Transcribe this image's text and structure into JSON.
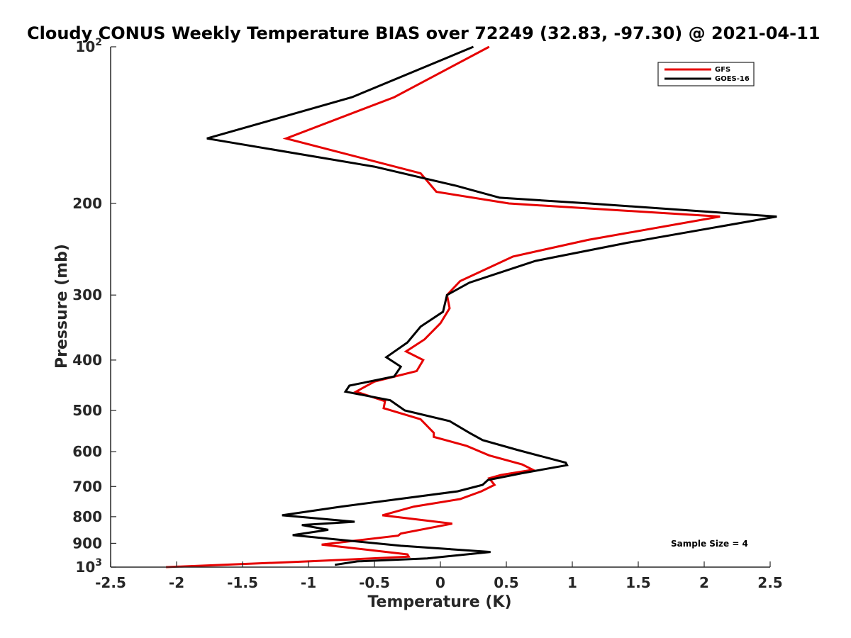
{
  "chart_data": {
    "type": "line",
    "title": "Cloudy CONUS Weekly Temperature BIAS over 72249 (32.83, -97.30) @ 2021-04-11",
    "xlabel": "Temperature (K)",
    "ylabel": "Pressure (mb)",
    "xlim": [
      -2.5,
      2.5
    ],
    "ylim": [
      100,
      1000
    ],
    "y_scale": "log",
    "y_reversed": true,
    "grid": false,
    "x_ticks": [
      "-2.5",
      "-2",
      "-1.5",
      "-1",
      "-0.5",
      "0",
      "0.5",
      "1",
      "1.5",
      "2",
      "2.5"
    ],
    "x_tick_values": [
      -2.5,
      -2,
      -1.5,
      -1,
      -0.5,
      0,
      0.5,
      1,
      1.5,
      2,
      2.5
    ],
    "y_ticks": [
      {
        "value": 100,
        "base": "10",
        "exp": "2"
      },
      {
        "value": 200,
        "label": "200"
      },
      {
        "value": 300,
        "label": "300"
      },
      {
        "value": 400,
        "label": "400"
      },
      {
        "value": 500,
        "label": "500"
      },
      {
        "value": 600,
        "label": "600"
      },
      {
        "value": 700,
        "label": "700"
      },
      {
        "value": 800,
        "label": "800"
      },
      {
        "value": 900,
        "label": "900"
      },
      {
        "value": 1000,
        "base": "10",
        "exp": "3"
      }
    ],
    "legend_position": "top-right",
    "series": [
      {
        "name": "GFS",
        "color": "#e60000",
        "points": [
          [
            0.37,
            100
          ],
          [
            -0.35,
            125
          ],
          [
            -1.17,
            150
          ],
          [
            -0.15,
            175
          ],
          [
            -0.03,
            190
          ],
          [
            0.52,
            200
          ],
          [
            2.12,
            212
          ],
          [
            1.12,
            235
          ],
          [
            0.55,
            253
          ],
          [
            0.15,
            282
          ],
          [
            0.05,
            300
          ],
          [
            0.07,
            318
          ],
          [
            0.0,
            340
          ],
          [
            -0.12,
            365
          ],
          [
            -0.26,
            385
          ],
          [
            -0.13,
            400
          ],
          [
            -0.18,
            420
          ],
          [
            -0.5,
            440
          ],
          [
            -0.64,
            460
          ],
          [
            -0.42,
            480
          ],
          [
            -0.43,
            495
          ],
          [
            -0.15,
            520
          ],
          [
            -0.05,
            552
          ],
          [
            -0.05,
            562
          ],
          [
            0.2,
            585
          ],
          [
            0.37,
            610
          ],
          [
            0.62,
            635
          ],
          [
            0.7,
            650
          ],
          [
            0.46,
            665
          ],
          [
            0.37,
            675
          ],
          [
            0.41,
            695
          ],
          [
            0.31,
            715
          ],
          [
            0.15,
            740
          ],
          [
            -0.2,
            765
          ],
          [
            -0.44,
            795
          ],
          [
            0.09,
            825
          ],
          [
            -0.3,
            862
          ],
          [
            -0.32,
            870
          ],
          [
            -0.9,
            905
          ],
          [
            -0.25,
            945
          ],
          [
            -0.24,
            955
          ],
          [
            -1.0,
            975
          ],
          [
            -2.08,
            1000
          ]
        ]
      },
      {
        "name": "GOES-16",
        "color": "#000000",
        "points": [
          [
            0.25,
            100
          ],
          [
            -0.67,
            125
          ],
          [
            -1.77,
            150
          ],
          [
            -0.5,
            170
          ],
          [
            0.12,
            185
          ],
          [
            0.45,
            195
          ],
          [
            1.13,
            200
          ],
          [
            2.55,
            212
          ],
          [
            1.42,
            238
          ],
          [
            0.72,
            258
          ],
          [
            0.22,
            284
          ],
          [
            0.05,
            300
          ],
          [
            0.02,
            323
          ],
          [
            -0.15,
            345
          ],
          [
            -0.25,
            370
          ],
          [
            -0.41,
            395
          ],
          [
            -0.3,
            412
          ],
          [
            -0.35,
            430
          ],
          [
            -0.69,
            448
          ],
          [
            -0.72,
            460
          ],
          [
            -0.38,
            478
          ],
          [
            -0.27,
            500
          ],
          [
            0.07,
            524
          ],
          [
            0.22,
            552
          ],
          [
            0.32,
            570
          ],
          [
            0.58,
            595
          ],
          [
            0.95,
            630
          ],
          [
            0.96,
            637
          ],
          [
            0.62,
            660
          ],
          [
            0.36,
            680
          ],
          [
            0.32,
            695
          ],
          [
            0.13,
            715
          ],
          [
            -0.75,
            765
          ],
          [
            -1.2,
            795
          ],
          [
            -0.65,
            818
          ],
          [
            -1.05,
            830
          ],
          [
            -0.85,
            848
          ],
          [
            -1.12,
            868
          ],
          [
            -0.3,
            910
          ],
          [
            0.38,
            935
          ],
          [
            -0.1,
            962
          ],
          [
            -0.63,
            975
          ],
          [
            -0.8,
            990
          ]
        ]
      }
    ],
    "annotations": [
      {
        "text": "Sample Size = 4"
      }
    ]
  }
}
